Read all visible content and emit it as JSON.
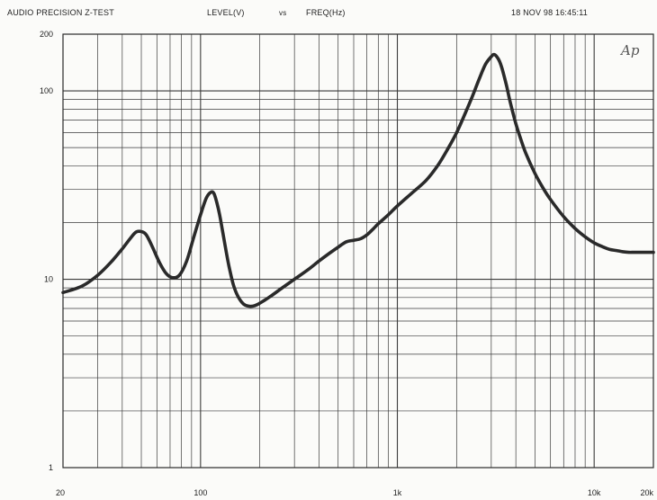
{
  "header": {
    "title": "AUDIO PRECISION Z-TEST",
    "y_quantity": "LEVEL(V)",
    "vs": "vs",
    "x_quantity": "FREQ(Hz)",
    "timestamp": "18 NOV 98 16:45:11"
  },
  "logo_text": "Ap",
  "chart_data": {
    "type": "line",
    "title": "",
    "xlabel": "",
    "ylabel": "",
    "x_scale": "log",
    "y_scale": "log",
    "xlim": [
      20,
      20000
    ],
    "ylim": [
      1,
      200
    ],
    "grid": true,
    "x_tick_labels": [
      {
        "value": 20,
        "label": "20"
      },
      {
        "value": 100,
        "label": "100"
      },
      {
        "value": 1000,
        "label": "1k"
      },
      {
        "value": 10000,
        "label": "10k"
      },
      {
        "value": 20000,
        "label": "20k"
      }
    ],
    "y_tick_labels": [
      {
        "value": 1,
        "label": "1"
      },
      {
        "value": 10,
        "label": "10"
      },
      {
        "value": 100,
        "label": "100"
      },
      {
        "value": 200,
        "label": "200"
      }
    ],
    "series": [
      {
        "color": "#2a2a2a",
        "x": [
          20,
          25,
          30,
          35,
          40,
          44,
          47,
          50,
          53,
          57,
          62,
          67,
          72,
          78,
          85,
          92,
          100,
          107,
          113,
          117,
          121,
          125,
          130,
          135,
          140,
          147,
          155,
          165,
          175,
          185,
          195,
          210,
          230,
          260,
          300,
          350,
          400,
          450,
          500,
          550,
          600,
          650,
          700,
          750,
          800,
          900,
          1000,
          1200,
          1400,
          1600,
          1800,
          2000,
          2200,
          2400,
          2600,
          2800,
          3000,
          3100,
          3200,
          3300,
          3400,
          3500,
          3600,
          3700,
          3800,
          4000,
          4200,
          4500,
          5000,
          5500,
          6000,
          7000,
          8000,
          9000,
          10000,
          11000,
          12000,
          13000,
          14000,
          15000,
          16000,
          18000,
          20000
        ],
        "y": [
          8.5,
          9.2,
          10.5,
          12.3,
          14.5,
          16.5,
          17.8,
          17.9,
          17.2,
          14.8,
          12.2,
          10.7,
          10.2,
          10.5,
          12.5,
          16.5,
          22,
          27,
          29,
          28.5,
          25.5,
          22,
          17.5,
          14,
          11.5,
          9.3,
          8.1,
          7.4,
          7.2,
          7.2,
          7.35,
          7.7,
          8.2,
          9.0,
          10.0,
          11.2,
          12.5,
          13.7,
          14.8,
          15.8,
          16.1,
          16.4,
          17.2,
          18.4,
          19.7,
          22,
          24.5,
          29,
          33.5,
          40,
          49,
          60,
          75,
          93,
          115,
          138,
          152,
          156,
          152,
          144,
          132,
          118,
          105,
          92,
          82,
          67,
          57,
          46.5,
          36.5,
          30.5,
          26.5,
          21.5,
          18.6,
          16.8,
          15.6,
          14.9,
          14.4,
          14.2,
          14.0,
          13.9,
          13.9,
          13.9,
          13.9
        ]
      }
    ]
  }
}
